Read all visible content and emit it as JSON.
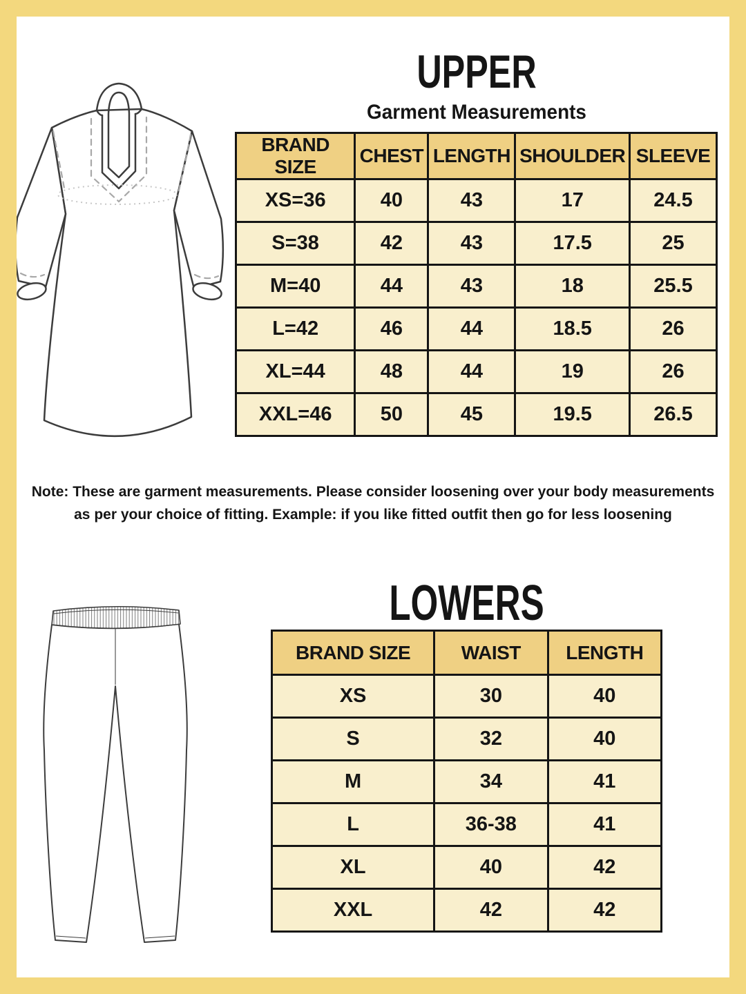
{
  "upper": {
    "title": "UPPER",
    "subtitle": "Garment Measurements",
    "illustration": "kurta-outline-drawing",
    "table": {
      "columns": [
        "BRAND SIZE",
        "CHEST",
        "LENGTH",
        "SHOULDER",
        "SLEEVE"
      ],
      "rows": [
        [
          "XS=36",
          "40",
          "43",
          "17",
          "24.5"
        ],
        [
          "S=38",
          "42",
          "43",
          "17.5",
          "25"
        ],
        [
          "M=40",
          "44",
          "43",
          "18",
          "25.5"
        ],
        [
          "L=42",
          "46",
          "44",
          "18.5",
          "26"
        ],
        [
          "XL=44",
          "48",
          "44",
          "19",
          "26"
        ],
        [
          "XXL=46",
          "50",
          "45",
          "19.5",
          "26.5"
        ]
      ]
    }
  },
  "note": {
    "line1": "Note: These are garment measurements. Please consider loosening over your body measurements",
    "line2": "as per your choice of fitting. Example: if you like fitted outfit then go for less loosening"
  },
  "lowers": {
    "title": "LOWERS",
    "illustration": "leggings-outline-drawing",
    "table": {
      "columns": [
        "BRAND SIZE",
        "WAIST",
        "LENGTH"
      ],
      "rows": [
        [
          "XS",
          "30",
          "40"
        ],
        [
          "S",
          "32",
          "40"
        ],
        [
          "M",
          "34",
          "41"
        ],
        [
          "L",
          "36-38",
          "41"
        ],
        [
          "XL",
          "40",
          "42"
        ],
        [
          "XXL",
          "42",
          "42"
        ]
      ]
    }
  },
  "colors": {
    "frame": "#f3d87e",
    "table_header_bg": "#efd083",
    "table_row_bg": "#f9efcd",
    "table_border": "#151515",
    "text": "#151515"
  }
}
